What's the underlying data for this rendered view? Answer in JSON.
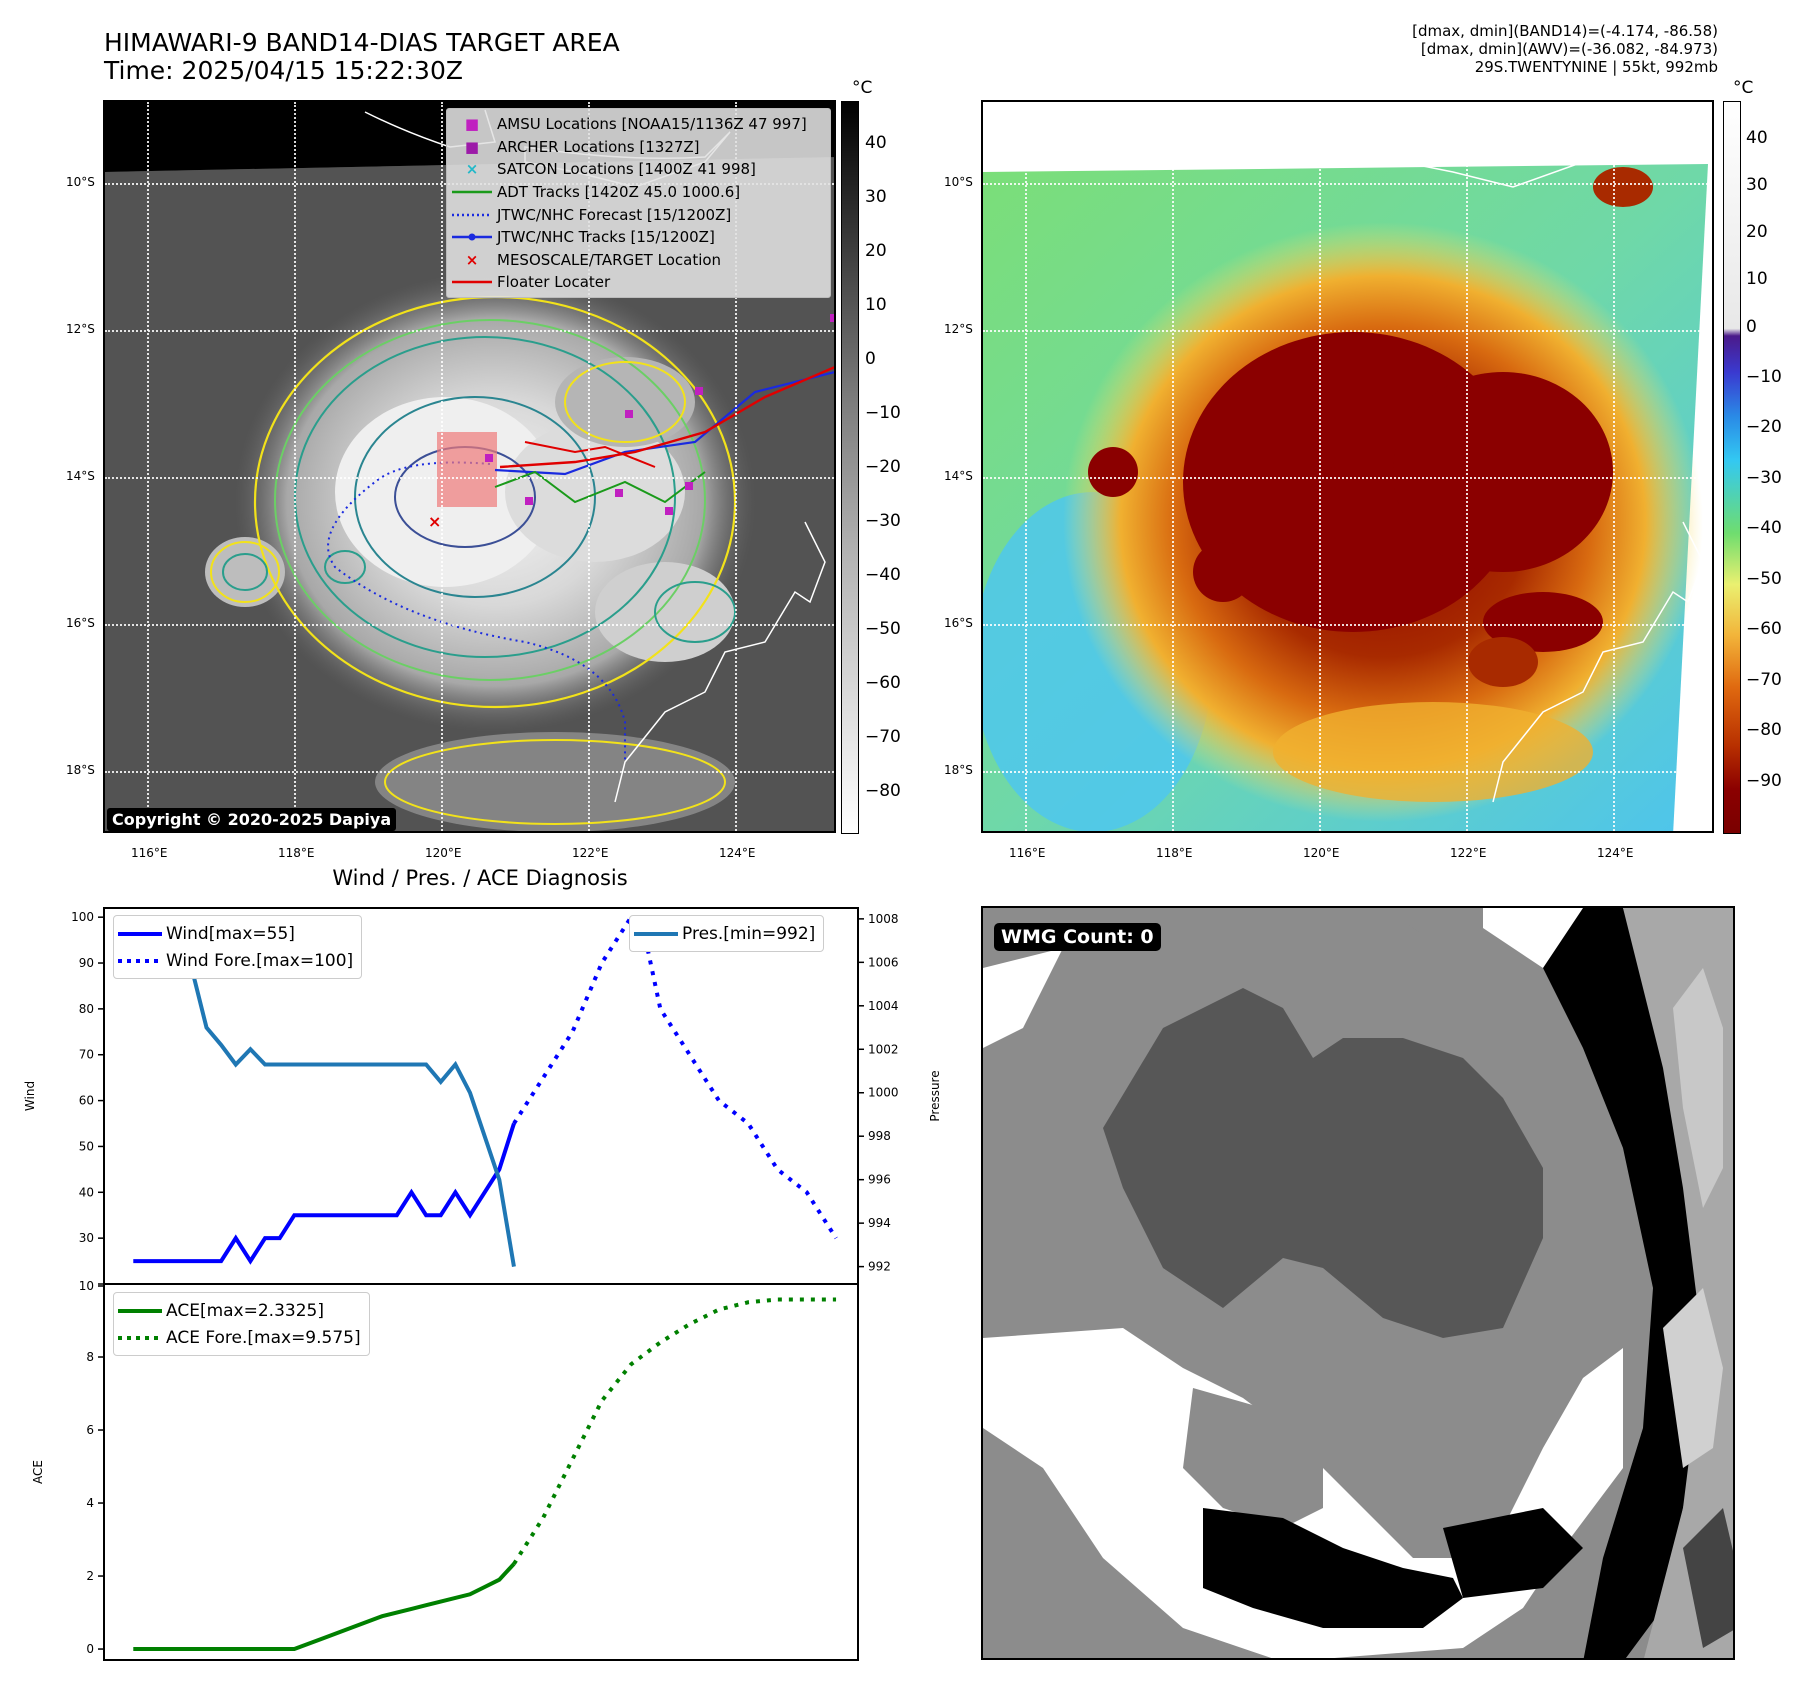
{
  "header": {
    "title_line1": "HIMAWARI-9 BAND14-DIAS TARGET AREA",
    "title_line2": "Time: 2025/04/15 15:22:30Z",
    "info_line1": "[dmax, dmin](BAND14)=(-4.174, -86.58)",
    "info_line2": "[dmax, dmin](AWV)=(-36.082, -84.973)",
    "info_line3": "29S.TWENTYNINE | 55kt, 992mb"
  },
  "map": {
    "lat_labels": [
      "10°S",
      "12°S",
      "14°S",
      "16°S",
      "18°S"
    ],
    "lon_labels": [
      "116°E",
      "118°E",
      "120°E",
      "122°E",
      "124°E"
    ],
    "copyright": "Copyright © 2020-2025 Dapiya",
    "legend": [
      {
        "label": "AMSU Locations [NOAA15/1136Z 47 997]",
        "symbol": "■",
        "color": "#c020c0"
      },
      {
        "label": "ARCHER Locations [1327Z]",
        "symbol": "■",
        "color": "#9c1aa8"
      },
      {
        "label": "SATCON Locations [1400Z 41 998]",
        "symbol": "×",
        "color": "#22b8c8"
      },
      {
        "label": "ADT Tracks [1420Z 45.0 1000.6]",
        "symbol": "line",
        "color": "#1a9a1a"
      },
      {
        "label": "JTWC/NHC Forecast [15/1200Z]",
        "symbol": "dotted",
        "color": "#1a2adf"
      },
      {
        "label": "JTWC/NHC Tracks [15/1200Z]",
        "symbol": "dotline",
        "color": "#1a2adf"
      },
      {
        "label": "MESOSCALE/TARGET Location",
        "symbol": "×",
        "color": "#e00000"
      },
      {
        "label": "Floater Locater",
        "symbol": "line",
        "color": "#e00000"
      }
    ]
  },
  "colorbars": {
    "unit": "°C",
    "left_ticks": [
      "40",
      "30",
      "20",
      "10",
      "0",
      "−10",
      "−20",
      "−30",
      "−40",
      "−50",
      "−60",
      "−70",
      "−80"
    ],
    "right_ticks": [
      "40",
      "30",
      "20",
      "10",
      "0",
      "−10",
      "−20",
      "−30",
      "−40",
      "−50",
      "−60",
      "−70",
      "−80",
      "−90"
    ]
  },
  "wmg": {
    "label": "WMG Count: 0"
  },
  "chart_data": [
    {
      "type": "line",
      "title": "Wind / Pres. / ACE Diagnosis",
      "ylabel": "Wind",
      "y2label": "Pressure",
      "ylim": [
        20,
        102
      ],
      "y2lim": [
        991.2,
        1008.5
      ],
      "yticks": [
        10,
        30,
        40,
        50,
        60,
        70,
        80,
        90,
        100
      ],
      "y2ticks": [
        992,
        994,
        996,
        998,
        1000,
        1002,
        1004,
        1006,
        1008
      ],
      "x": [
        0,
        1,
        2,
        3,
        4,
        5,
        6,
        7,
        8,
        9,
        10,
        11,
        12,
        13,
        14,
        15,
        16,
        17,
        18,
        19,
        20,
        21,
        22,
        23,
        24,
        25,
        26,
        27,
        28,
        29,
        30,
        31,
        32,
        33,
        34,
        35,
        36,
        37,
        38,
        39,
        40,
        41,
        42,
        43,
        44,
        45,
        46,
        47,
        48
      ],
      "legend_left": [
        "Wind[max=55]",
        "Wind Fore.[max=100]"
      ],
      "legend_right": [
        "Pres.[min=992]"
      ],
      "series": [
        {
          "name": "Wind[max=55]",
          "axis": "left",
          "style": "solid",
          "color": "#0000ff",
          "x": [
            0,
            1,
            2,
            3,
            4,
            5,
            6,
            7,
            8,
            9,
            10,
            11,
            12,
            13,
            14,
            15,
            16,
            17,
            18,
            19,
            20,
            21,
            22,
            23,
            24,
            25,
            26
          ],
          "values": [
            25,
            25,
            25,
            25,
            25,
            25,
            25,
            30,
            25,
            30,
            30,
            35,
            35,
            35,
            35,
            35,
            35,
            35,
            35,
            40,
            35,
            35,
            40,
            35,
            40,
            45,
            55
          ]
        },
        {
          "name": "Wind Fore.[max=100]",
          "axis": "left",
          "style": "dotted",
          "color": "#0000ff",
          "x": [
            26,
            28,
            30,
            32,
            34,
            35,
            36,
            38,
            40,
            42,
            44,
            46,
            48
          ],
          "values": [
            55,
            65,
            75,
            90,
            100,
            95,
            80,
            70,
            60,
            55,
            45,
            40,
            30
          ]
        },
        {
          "name": "Pres.[min=992]",
          "axis": "right",
          "style": "solid",
          "color": "#1f77b4",
          "x": [
            0,
            1,
            2,
            3,
            4,
            5,
            6,
            7,
            8,
            9,
            10,
            11,
            12,
            13,
            14,
            15,
            16,
            17,
            18,
            19,
            20,
            21,
            22,
            23,
            24,
            25,
            26
          ],
          "values": [
            1008,
            1006.5,
            1006.5,
            1005.7,
            1005.7,
            1003,
            1002.2,
            1001.3,
            1002,
            1001.3,
            1001.3,
            1001.3,
            1001.3,
            1001.3,
            1001.3,
            1001.3,
            1001.3,
            1001.3,
            1001.3,
            1001.3,
            1001.3,
            1000.5,
            1001.3,
            1000,
            998,
            996,
            992
          ]
        }
      ]
    },
    {
      "type": "line",
      "ylabel": "ACE",
      "ylim": [
        -0.3,
        10
      ],
      "yticks": [
        0,
        2,
        4,
        6,
        8,
        10
      ],
      "legend": [
        "ACE[max=2.3325]",
        "ACE Fore.[max=9.575]"
      ],
      "series": [
        {
          "name": "ACE[max=2.3325]",
          "style": "solid",
          "color": "#008000",
          "x": [
            0,
            2,
            4,
            6,
            8,
            10,
            11,
            13,
            15,
            17,
            19,
            20,
            21,
            23,
            24,
            25,
            26
          ],
          "values": [
            0,
            0,
            0,
            0,
            0,
            0,
            0,
            0.3,
            0.6,
            0.9,
            1.1,
            1.2,
            1.3,
            1.5,
            1.7,
            1.9,
            2.3325
          ]
        },
        {
          "name": "ACE Fore.[max=9.575]",
          "style": "dotted",
          "color": "#008000",
          "x": [
            26,
            28,
            30,
            32,
            34,
            36,
            38,
            40,
            42,
            44,
            46,
            48
          ],
          "values": [
            2.3325,
            3.6,
            5.2,
            6.8,
            7.8,
            8.4,
            8.9,
            9.3,
            9.5,
            9.575,
            9.575,
            9.575
          ]
        }
      ]
    }
  ]
}
